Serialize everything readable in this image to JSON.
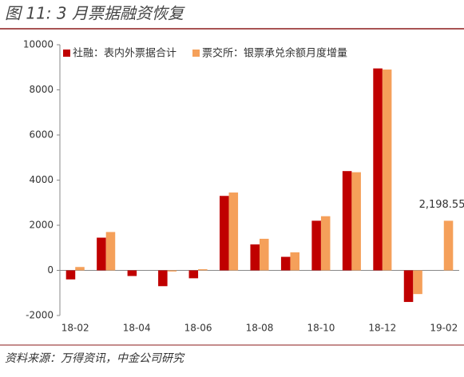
{
  "chart_data": {
    "type": "bar",
    "title": "图 11: 3 月票据融资恢复",
    "source": "资料来源：万得资讯，中金公司研究",
    "categories": [
      "18-02",
      null,
      "18-04",
      null,
      "18-06",
      null,
      "18-08",
      null,
      "18-10",
      null,
      "18-12",
      null,
      "19-02"
    ],
    "series": [
      {
        "name": "社融：表内外票据合计",
        "color": "#c00000",
        "values": [
          -400,
          1450,
          -250,
          -700,
          -350,
          3300,
          1150,
          600,
          2200,
          4400,
          8950,
          -1400,
          null
        ]
      },
      {
        "name": "票交所：银票承兑余额月度增量",
        "color": "#f5a05a",
        "values": [
          150,
          1700,
          0,
          -50,
          50,
          3450,
          1400,
          800,
          2400,
          4350,
          8900,
          -1050,
          2198.55
        ],
        "value_labels": [
          null,
          null,
          null,
          null,
          null,
          null,
          null,
          null,
          null,
          null,
          null,
          null,
          "2,198.55"
        ]
      }
    ],
    "ylim": [
      -2000,
      10000
    ],
    "yticks": [
      -2000,
      0,
      2000,
      4000,
      6000,
      8000,
      10000
    ],
    "legend": "top-left"
  }
}
